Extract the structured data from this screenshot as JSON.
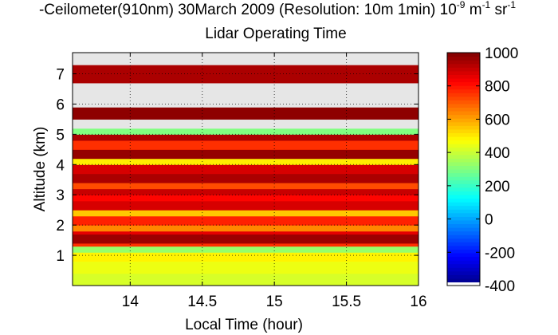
{
  "title": {
    "prefix": "-Ceilometer(910nm) 30March 2009 (Resolution: 10m 1min) 10",
    "exp1": "-9",
    "unit_mid": " m",
    "exp2": "-1",
    "unit_end": " sr",
    "exp3": "-1",
    "subtitle": "Lidar Operating Time"
  },
  "chart_data": {
    "type": "heatmap",
    "title": "Ceilometer(910nm) 30March 2009 (Resolution: 10m 1min) 10^-9 m^-1 sr^-1",
    "subtitle": "Lidar Operating Time",
    "xlabel": "Local Time (hour)",
    "ylabel": "Altitude (km)",
    "xlim": [
      13.6,
      16.0
    ],
    "ylim": [
      0,
      7.7
    ],
    "xticks": [
      14,
      14.5,
      15,
      15.5,
      16
    ],
    "xtick_labels": [
      "14",
      "14.5",
      "15",
      "15.5",
      "16"
    ],
    "yticks": [
      1,
      2,
      3,
      4,
      5,
      6,
      7
    ],
    "ytick_labels": [
      "1",
      "2",
      "3",
      "4",
      "5",
      "6",
      "7"
    ],
    "grid": true,
    "colorbar": {
      "range": [
        -400,
        1000
      ],
      "ticks": [
        1000,
        800,
        600,
        400,
        200,
        0,
        -200,
        -400
      ],
      "tick_labels": [
        "1000",
        "800",
        "600",
        "400",
        "200",
        "0",
        "-200",
        "-400"
      ],
      "colormap": "jet"
    },
    "layers": [
      {
        "altitude": [
          0.0,
          0.4
        ],
        "value": 420
      },
      {
        "altitude": [
          0.4,
          0.8
        ],
        "value": 450
      },
      {
        "altitude": [
          0.8,
          1.1
        ],
        "value": 490
      },
      {
        "altitude": [
          1.1,
          1.3
        ],
        "value": 330
      },
      {
        "altitude": [
          1.3,
          1.4
        ],
        "value": 760
      },
      {
        "altitude": [
          1.4,
          1.7
        ],
        "value": 960
      },
      {
        "altitude": [
          1.7,
          1.8
        ],
        "value": 860
      },
      {
        "altitude": [
          1.8,
          2.0
        ],
        "value": 640
      },
      {
        "altitude": [
          2.0,
          2.3
        ],
        "value": 780
      },
      {
        "altitude": [
          2.3,
          2.5
        ],
        "value": 550
      },
      {
        "altitude": [
          2.5,
          2.8
        ],
        "value": 880
      },
      {
        "altitude": [
          2.8,
          3.0
        ],
        "value": 820
      },
      {
        "altitude": [
          3.0,
          3.2
        ],
        "value": 900
      },
      {
        "altitude": [
          3.2,
          3.4
        ],
        "value": 720
      },
      {
        "altitude": [
          3.4,
          3.7
        ],
        "value": 940
      },
      {
        "altitude": [
          3.7,
          4.0
        ],
        "value": 880
      },
      {
        "altitude": [
          4.0,
          4.2
        ],
        "value": 500
      },
      {
        "altitude": [
          4.2,
          4.5
        ],
        "value": 970
      },
      {
        "altitude": [
          4.5,
          4.8
        ],
        "value": 760
      },
      {
        "altitude": [
          4.8,
          5.0
        ],
        "value": 940
      },
      {
        "altitude": [
          5.0,
          5.2
        ],
        "value": 300
      },
      {
        "altitude": [
          5.2,
          5.5
        ],
        "value": "no-data"
      },
      {
        "altitude": [
          5.5,
          5.9
        ],
        "value": 980
      },
      {
        "altitude": [
          5.9,
          6.7
        ],
        "value": "no-data"
      },
      {
        "altitude": [
          6.7,
          7.3
        ],
        "value": 940
      },
      {
        "altitude": [
          7.3,
          7.7
        ],
        "value": "no-data"
      }
    ]
  }
}
